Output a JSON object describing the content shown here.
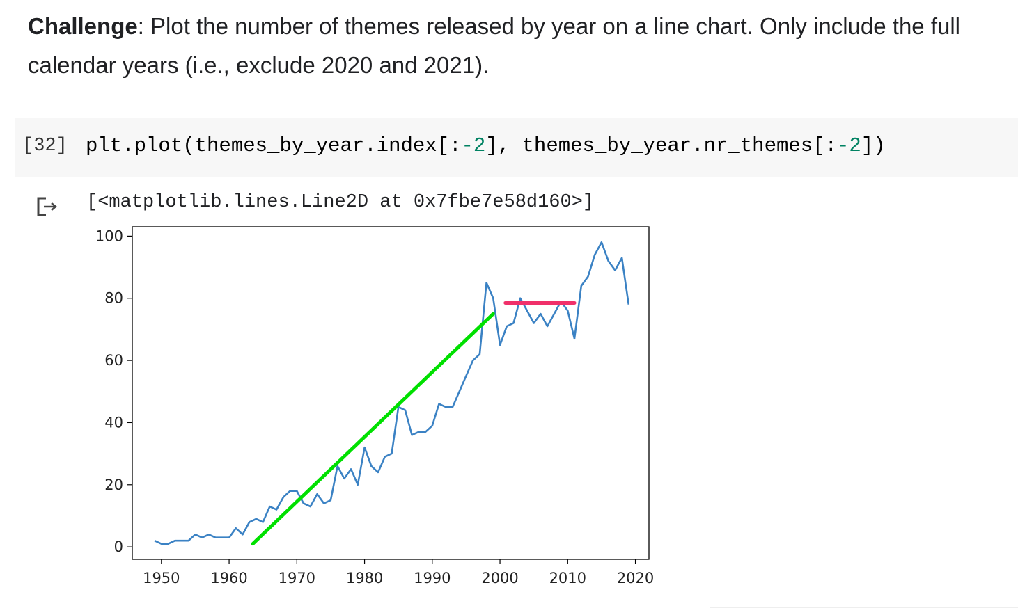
{
  "challenge": {
    "label": "Challenge",
    "text": ": Plot the number of themes released by year on a line chart. Only include the full calendar years (i.e., exclude 2020 and 2021)."
  },
  "cell": {
    "execution_count": "[32]",
    "code_parts": [
      "plt.plot(themes_by_year.index[:",
      "-2",
      "], themes_by_year.nr_themes[:",
      "-2",
      "])"
    ]
  },
  "output": {
    "icon": "output-redirect-icon",
    "text": "[<matplotlib.lines.Line2D at 0x7fbe7e58d160>]"
  },
  "colors": {
    "line": "#3b82c4",
    "annotation_green": "#00e000",
    "annotation_pink": "#f0306a"
  },
  "chart_data": {
    "type": "line",
    "title": "",
    "xlabel": "",
    "ylabel": "",
    "xlim": [
      1945.7,
      2022
    ],
    "ylim": [
      -4,
      103
    ],
    "xticks": [
      1950,
      1960,
      1970,
      1980,
      1990,
      2000,
      2010,
      2020
    ],
    "yticks": [
      0,
      20,
      40,
      60,
      80,
      100
    ],
    "grid": false,
    "series": [
      {
        "x": [
          1949,
          1950,
          1951,
          1952,
          1953,
          1954,
          1955,
          1956,
          1957,
          1958,
          1959,
          1960,
          1961,
          1962,
          1963,
          1964,
          1965,
          1966,
          1967,
          1968,
          1969,
          1970,
          1971,
          1972,
          1973,
          1974,
          1975,
          1976,
          1977,
          1978,
          1979,
          1980,
          1981,
          1982,
          1983,
          1984,
          1985,
          1986,
          1987,
          1988,
          1989,
          1990,
          1991,
          1992,
          1993,
          1994,
          1995,
          1996,
          1997,
          1998,
          1999,
          2000,
          2001,
          2002,
          2003,
          2004,
          2005,
          2006,
          2007,
          2008,
          2009,
          2010,
          2011,
          2012,
          2013,
          2014,
          2015,
          2016,
          2017,
          2018,
          2019
        ],
        "y": [
          2,
          1,
          1,
          2,
          2,
          2,
          4,
          3,
          4,
          3,
          3,
          3,
          6,
          4,
          8,
          9,
          8,
          13,
          12,
          16,
          18,
          18,
          14,
          13,
          17,
          14,
          15,
          26,
          22,
          25,
          20,
          32,
          26,
          24,
          29,
          30,
          45,
          44,
          36,
          37,
          37,
          39,
          46,
          45,
          45,
          50,
          55,
          60,
          62,
          85,
          80,
          65,
          71,
          72,
          80,
          76,
          72,
          75,
          71,
          75,
          79,
          76,
          67,
          84,
          87,
          94,
          98,
          92,
          89,
          93,
          78
        ]
      }
    ],
    "annotations": [
      {
        "type": "trend-line",
        "color": "green",
        "from": [
          1963.5,
          1
        ],
        "to": [
          1999,
          75
        ]
      },
      {
        "type": "plateau-line",
        "color": "pink",
        "from": [
          2000.8,
          78.5
        ],
        "to": [
          2011,
          78.5
        ]
      }
    ]
  }
}
